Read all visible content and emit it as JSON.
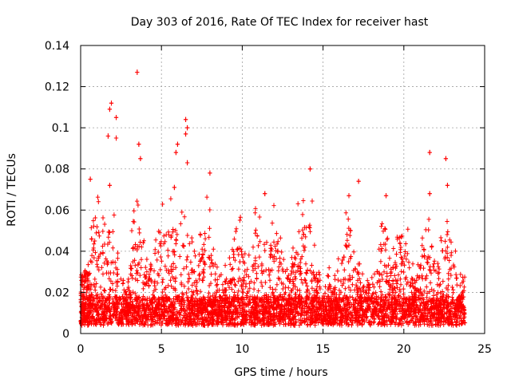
{
  "chart_data": {
    "type": "scatter",
    "title": "Day 303 of 2016, Rate Of TEC Index for receiver hast",
    "xlabel": "GPS time / hours",
    "ylabel": "ROTI / TECUs",
    "xlim": [
      0,
      25
    ],
    "ylim": [
      0,
      0.14
    ],
    "xticks": [
      0,
      5,
      10,
      15,
      20,
      25
    ],
    "yticks": [
      0,
      0.02,
      0.04,
      0.06,
      0.08,
      0.1,
      0.12,
      0.14
    ],
    "xtick_labels": [
      "0",
      "5",
      "10",
      "15",
      "20",
      "25"
    ],
    "ytick_labels": [
      "0",
      "0.02",
      "0.04",
      "0.06",
      "0.08",
      "0.1",
      "0.12",
      "0.14"
    ],
    "grid": true,
    "marker": "plus",
    "color": "#ff0000",
    "series": [
      {
        "name": "ROTI",
        "description": "Dense cloud of thousands of samples spanning 0–23.8 h; baseline about 0.005–0.02 TECU/min with frequent spikes to 0.04–0.06",
        "notable_points": [
          {
            "x": 3.5,
            "y": 0.127
          },
          {
            "x": 1.9,
            "y": 0.112
          },
          {
            "x": 1.8,
            "y": 0.109
          },
          {
            "x": 2.2,
            "y": 0.105
          },
          {
            "x": 6.5,
            "y": 0.104
          },
          {
            "x": 6.6,
            "y": 0.1
          },
          {
            "x": 6.5,
            "y": 0.097
          },
          {
            "x": 1.7,
            "y": 0.096
          },
          {
            "x": 2.2,
            "y": 0.095
          },
          {
            "x": 3.6,
            "y": 0.092
          },
          {
            "x": 6.0,
            "y": 0.092
          },
          {
            "x": 5.9,
            "y": 0.088
          },
          {
            "x": 21.6,
            "y": 0.088
          },
          {
            "x": 3.7,
            "y": 0.085
          },
          {
            "x": 22.6,
            "y": 0.085
          },
          {
            "x": 6.6,
            "y": 0.083
          },
          {
            "x": 14.2,
            "y": 0.08
          },
          {
            "x": 8.0,
            "y": 0.078
          },
          {
            "x": 0.6,
            "y": 0.075
          },
          {
            "x": 17.2,
            "y": 0.074
          },
          {
            "x": 22.7,
            "y": 0.072
          },
          {
            "x": 1.8,
            "y": 0.072
          },
          {
            "x": 5.8,
            "y": 0.071
          },
          {
            "x": 11.4,
            "y": 0.068
          },
          {
            "x": 16.6,
            "y": 0.067
          },
          {
            "x": 18.9,
            "y": 0.067
          },
          {
            "x": 21.6,
            "y": 0.068
          }
        ]
      }
    ]
  }
}
